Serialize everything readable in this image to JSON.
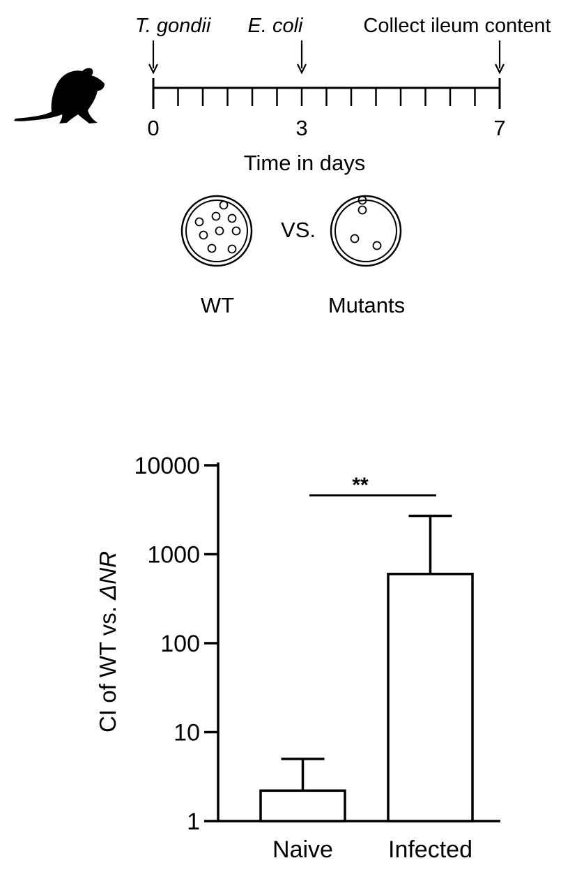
{
  "timeline": {
    "event_labels": [
      {
        "text": "T. gondii",
        "italic": true,
        "day": 0
      },
      {
        "text": "E. coli",
        "italic": true,
        "day": 3
      },
      {
        "text": "Collect ileum content",
        "italic": false,
        "day": 7
      }
    ],
    "day_start": 0,
    "day_end": 7,
    "tick_labels": [
      "0",
      "3",
      "7"
    ],
    "xlabel": "Time in days",
    "icon": "mouse-icon"
  },
  "comparison": {
    "vs_label": "VS.",
    "wt_label": "WT",
    "mutants_label": "Mutants",
    "wt_colony_count": 9,
    "mutant_colony_count": 4
  },
  "chart_data": {
    "type": "bar",
    "categories": [
      "Naive",
      "Infected"
    ],
    "values": [
      2.2,
      600
    ],
    "error_upper": [
      5,
      2700
    ],
    "ylabel_prefix": "CI of WT vs. ",
    "ylabel_italic": "ΔNR",
    "yscale": "log",
    "ylim": [
      1,
      10000
    ],
    "yticks": [
      "1",
      "10",
      "100",
      "1000",
      "10000"
    ],
    "significance": "**",
    "grid": false
  }
}
